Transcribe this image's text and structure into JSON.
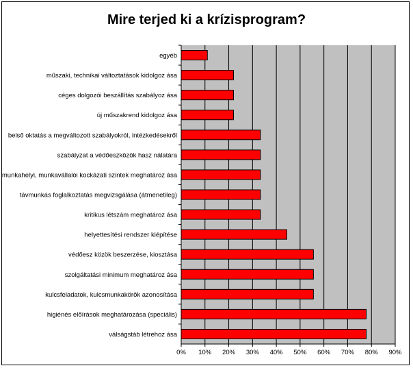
{
  "chart_data": {
    "type": "bar",
    "orientation": "horizontal",
    "title": "Mire terjed ki a krízisprogram?",
    "xlabel": "",
    "ylabel": "",
    "xlim": [
      0,
      0.9
    ],
    "x_ticks": [
      "0%",
      "10%",
      "20%",
      "30%",
      "40%",
      "50%",
      "60%",
      "70%",
      "80%",
      "90%"
    ],
    "grid": "vertical gridlines",
    "legend": "none",
    "categories": [
      "egyéb",
      "műszaki, technikai változtatások kidolgoz ása",
      "céges dolgozói beszállítás szabályoz ása",
      "új műszakrend kidolgoz ása",
      "belső oktatás a megváltozott szabályokról, intézkedésekről",
      "szabályzat a védőeszközök hasz nálatára",
      "munkahelyi, munkavállalói kockázati szintek meghatároz ása",
      "távmunkás foglalkoztatás megvizsgálása (átmenetileg)",
      "kritikus létszám meghatároz ása",
      "helyettesítési rendszer kiépítése",
      "védőesz közök beszerzése, kiosztása",
      "szolgáltatási minimum meghatároz ása",
      "kulcsfeladatok, kulcsmunkakörök azonosítása",
      "higiénés előírások meghatározása (speciális)",
      "válságstáb létrehoz ása"
    ],
    "values": [
      0.11,
      0.22,
      0.22,
      0.22,
      0.333,
      0.333,
      0.333,
      0.333,
      0.333,
      0.444,
      0.556,
      0.556,
      0.556,
      0.778,
      0.778
    ],
    "colors": {
      "bar_fill": "#ff0000",
      "bar_stroke": "#000000",
      "plot_background": "#c0c0c0",
      "gridline": "#000000"
    }
  }
}
